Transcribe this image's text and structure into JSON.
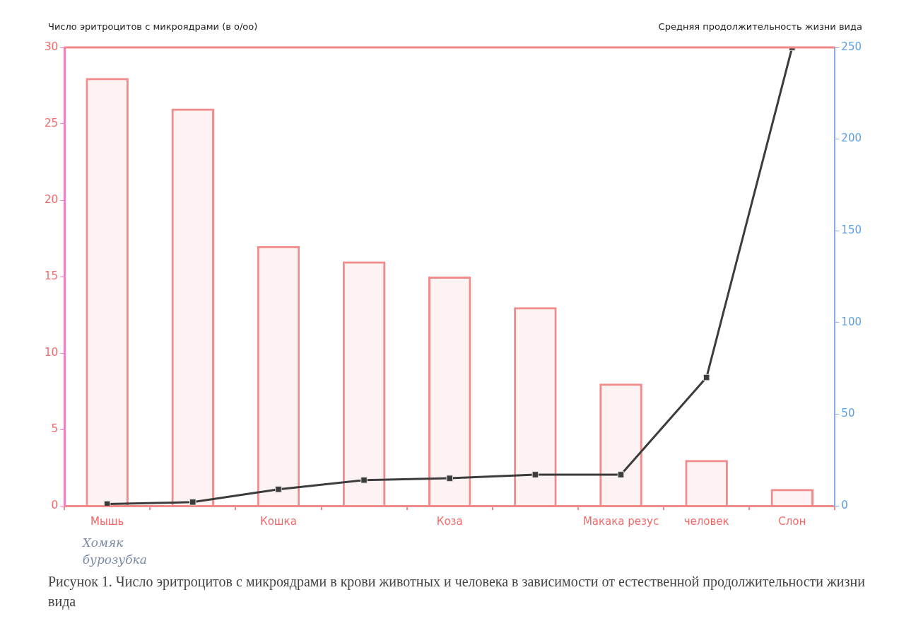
{
  "chart_data": {
    "type": "bar",
    "title": "Рисунок 1. Число эритроцитов с микроядрами в крови животных и человека в зависимости от естественной продолжительности жизни вида",
    "ylabel": "Число эритроцитов с микроядрами (в о/оо)",
    "y2label": "Средняя продолжительность жизни вида",
    "categories": [
      "Мышь",
      null,
      "Кошка",
      null,
      "Коза",
      null,
      "Макака резус",
      "человек",
      "Слон"
    ],
    "series": [
      {
        "type": "bar",
        "color": "#f28c8c",
        "values": [
          28,
          26,
          17,
          16,
          15,
          13,
          8,
          3,
          1.1
        ]
      },
      {
        "type": "line",
        "axis": "y2",
        "color": "#3c3c3c",
        "values": [
          1,
          2,
          9,
          14,
          15,
          17,
          17,
          70,
          250
        ]
      }
    ],
    "ylim": [
      0,
      30
    ],
    "yticks": [
      0,
      5,
      10,
      15,
      20,
      25,
      30
    ],
    "y2lim": [
      0,
      250
    ],
    "y2ticks": [
      0,
      50,
      100,
      150,
      200,
      250
    ],
    "grid": false,
    "legend": false,
    "marker": "square",
    "line_style": "solid",
    "annotations": [
      "Хомяк",
      "бурозубка"
    ]
  }
}
